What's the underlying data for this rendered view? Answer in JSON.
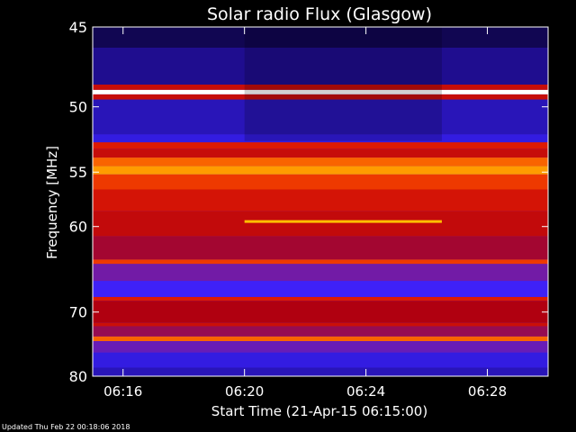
{
  "chart_data": {
    "type": "heatmap",
    "title": "Solar radio Flux (Glasgow)",
    "xlabel": "Start Time (21-Apr-15 06:15:00)",
    "ylabel": "Frequency [MHz]",
    "x_unit": "minutes after 06:15:00",
    "xlim": [
      0,
      15
    ],
    "ylim": [
      80,
      45
    ],
    "y_scale": "reciprocal",
    "x_ticks": [
      {
        "value": 1,
        "label": "06:16"
      },
      {
        "value": 5,
        "label": "06:20"
      },
      {
        "value": 9,
        "label": "06:24"
      },
      {
        "value": 13,
        "label": "06:28"
      }
    ],
    "y_ticks": [
      {
        "value": 45,
        "label": "45"
      },
      {
        "value": 50,
        "label": "50"
      },
      {
        "value": 55,
        "label": "55"
      },
      {
        "value": 60,
        "label": "60"
      },
      {
        "value": 70,
        "label": "70"
      },
      {
        "value": 80,
        "label": "80"
      }
    ],
    "colormap": [
      "#000000",
      "#1b0a80",
      "#3a22ff",
      "#7a1a9a",
      "#b00010",
      "#e82000",
      "#ff7a00",
      "#ffd000",
      "#ffffff"
    ],
    "bands": [
      {
        "f0": 45.0,
        "f1": 46.2,
        "level": 0.08
      },
      {
        "f0": 46.2,
        "f1": 48.5,
        "level": 0.14
      },
      {
        "f0": 48.5,
        "f1": 48.85,
        "level": 0.55
      },
      {
        "f0": 48.85,
        "f1": 49.15,
        "level": 1.0
      },
      {
        "f0": 49.15,
        "f1": 49.5,
        "level": 0.55
      },
      {
        "f0": 49.5,
        "f1": 52.0,
        "level": 0.18
      },
      {
        "f0": 52.0,
        "f1": 52.6,
        "level": 0.22
      },
      {
        "f0": 52.6,
        "f1": 53.1,
        "level": 0.6
      },
      {
        "f0": 53.1,
        "f1": 53.8,
        "level": 0.55
      },
      {
        "f0": 53.8,
        "f1": 54.5,
        "level": 0.72
      },
      {
        "f0": 54.5,
        "f1": 55.2,
        "level": 0.8
      },
      {
        "f0": 55.2,
        "f1": 56.5,
        "level": 0.66
      },
      {
        "f0": 56.5,
        "f1": 58.5,
        "level": 0.58
      },
      {
        "f0": 58.5,
        "f1": 61.0,
        "level": 0.54
      },
      {
        "f0": 61.0,
        "f1": 63.5,
        "level": 0.47
      },
      {
        "f0": 63.5,
        "f1": 64.0,
        "level": 0.66
      },
      {
        "f0": 64.0,
        "f1": 66.0,
        "level": 0.36
      },
      {
        "f0": 66.0,
        "f1": 68.0,
        "level": 0.26
      },
      {
        "f0": 68.0,
        "f1": 68.5,
        "level": 0.6
      },
      {
        "f0": 68.5,
        "f1": 71.5,
        "level": 0.5
      },
      {
        "f0": 71.5,
        "f1": 72.0,
        "level": 0.56
      },
      {
        "f0": 72.0,
        "f1": 73.5,
        "level": 0.44
      },
      {
        "f0": 73.5,
        "f1": 74.2,
        "level": 0.72
      },
      {
        "f0": 74.2,
        "f1": 76.0,
        "level": 0.34
      },
      {
        "f0": 76.0,
        "f1": 78.5,
        "level": 0.22
      },
      {
        "f0": 78.5,
        "f1": 80.0,
        "level": 0.18
      }
    ],
    "features": [
      {
        "type": "burst",
        "t0": 5.0,
        "t1": 11.5,
        "freq": 59.5,
        "level": 0.85
      },
      {
        "type": "quiet_column",
        "t0": 5.0,
        "t1": 11.5,
        "f0": 45.0,
        "f1": 52.5
      }
    ]
  },
  "footer": {
    "updated": "Updated Thu Feb 22 00:18:06 2018"
  }
}
